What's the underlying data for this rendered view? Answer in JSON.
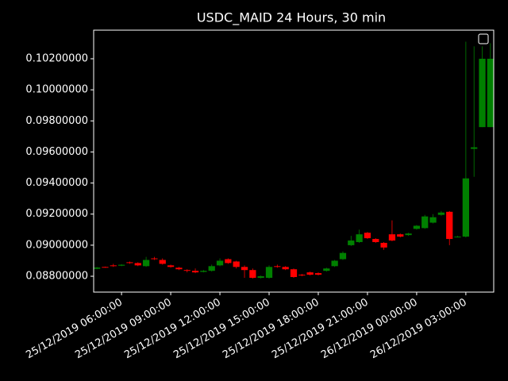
{
  "chart_data": {
    "type": "candlestick",
    "title": "USDC_MAID  24 Hours, 30 min",
    "x": [
      "25/12/2019  04:30:00",
      "25/12/2019  05:00:00",
      "25/12/2019  05:30:00",
      "25/12/2019  06:00:00",
      "25/12/2019  06:30:00",
      "25/12/2019  07:00:00",
      "25/12/2019  07:30:00",
      "25/12/2019  08:00:00",
      "25/12/2019  08:30:00",
      "25/12/2019  09:00:00",
      "25/12/2019  09:30:00",
      "25/12/2019  10:00:00",
      "25/12/2019  10:30:00",
      "25/12/2019  11:00:00",
      "25/12/2019  11:30:00",
      "25/12/2019  12:00:00",
      "25/12/2019  12:30:00",
      "25/12/2019  13:00:00",
      "25/12/2019  13:30:00",
      "25/12/2019  14:00:00",
      "25/12/2019  14:30:00",
      "25/12/2019  15:00:00",
      "25/12/2019  15:30:00",
      "25/12/2019  16:00:00",
      "25/12/2019  16:30:00",
      "25/12/2019  17:00:00",
      "25/12/2019  17:30:00",
      "25/12/2019  18:00:00",
      "25/12/2019  18:30:00",
      "25/12/2019  19:00:00",
      "25/12/2019  19:30:00",
      "25/12/2019  20:00:00",
      "25/12/2019  20:30:00",
      "25/12/2019  21:00:00",
      "25/12/2019  21:30:00",
      "25/12/2019  22:00:00",
      "25/12/2019  22:30:00",
      "25/12/2019  23:00:00",
      "25/12/2019  23:30:00",
      "26/12/2019  00:00:00",
      "26/12/2019  00:30:00",
      "26/12/2019  01:00:00",
      "26/12/2019  01:30:00",
      "26/12/2019  02:00:00",
      "26/12/2019  02:30:00",
      "26/12/2019  03:00:00",
      "26/12/2019  03:30:00",
      "26/12/2019  04:00:00",
      "26/12/2019  04:30:00"
    ],
    "open": [
      0.08848,
      0.0886,
      0.0887,
      0.08868,
      0.0889,
      0.08885,
      0.08865,
      0.08915,
      0.08905,
      0.0887,
      0.08855,
      0.0884,
      0.08835,
      0.08828,
      0.08835,
      0.0887,
      0.0891,
      0.08895,
      0.0886,
      0.0884,
      0.0879,
      0.0879,
      0.08865,
      0.0886,
      0.08845,
      0.0881,
      0.08825,
      0.0882,
      0.08835,
      0.08865,
      0.0891,
      0.09,
      0.0902,
      0.0908,
      0.0904,
      0.09015,
      0.0907,
      0.0907,
      0.09065,
      0.09105,
      0.0911,
      0.09145,
      0.09195,
      0.09215,
      0.0905,
      0.09055,
      0.0962,
      0.0976,
      0.0976
    ],
    "close": [
      0.08856,
      0.08857,
      0.08866,
      0.08874,
      0.08885,
      0.0887,
      0.08905,
      0.0891,
      0.0888,
      0.0886,
      0.08845,
      0.08835,
      0.08825,
      0.08835,
      0.08865,
      0.089,
      0.08885,
      0.0886,
      0.0884,
      0.0879,
      0.088,
      0.0886,
      0.0886,
      0.08845,
      0.08795,
      0.08805,
      0.0881,
      0.0881,
      0.0885,
      0.089,
      0.0895,
      0.0903,
      0.0907,
      0.09045,
      0.0902,
      0.08985,
      0.0903,
      0.09055,
      0.09075,
      0.09125,
      0.09185,
      0.0918,
      0.0921,
      0.0904,
      0.09055,
      0.0943,
      0.0963,
      0.102,
      0.102
    ],
    "high": [
      0.0886,
      0.08862,
      0.0888,
      0.08878,
      0.08895,
      0.0889,
      0.08925,
      0.08925,
      0.08915,
      0.08875,
      0.0886,
      0.08845,
      0.0885,
      0.0884,
      0.08875,
      0.08915,
      0.08915,
      0.089,
      0.0887,
      0.0885,
      0.08805,
      0.0887,
      0.08875,
      0.08865,
      0.0885,
      0.08815,
      0.0883,
      0.08825,
      0.08855,
      0.08905,
      0.0896,
      0.0906,
      0.091,
      0.09085,
      0.09045,
      0.0902,
      0.0916,
      0.09075,
      0.0908,
      0.0913,
      0.09195,
      0.092,
      0.0922,
      0.0922,
      0.0906,
      0.1031,
      0.1028,
      0.1028,
      0.103
    ],
    "low": [
      0.08845,
      0.08855,
      0.0886,
      0.08865,
      0.0888,
      0.08865,
      0.0886,
      0.08905,
      0.08875,
      0.08855,
      0.0884,
      0.08825,
      0.0882,
      0.08825,
      0.0883,
      0.08865,
      0.0888,
      0.0885,
      0.0879,
      0.08785,
      0.08785,
      0.08785,
      0.08855,
      0.0884,
      0.0879,
      0.088,
      0.08805,
      0.08805,
      0.0883,
      0.0886,
      0.08905,
      0.08995,
      0.09015,
      0.0904,
      0.09015,
      0.0897,
      0.09025,
      0.0905,
      0.0906,
      0.091,
      0.09105,
      0.0914,
      0.0919,
      0.09,
      0.0905,
      0.0905,
      0.0944,
      0.0976,
      0.0976
    ],
    "up_color": "#008000",
    "down_color": "#ff0000",
    "xlim": [
      "25/12/2019  04:18:00",
      "26/12/2019  04:42:00"
    ],
    "xticks": [
      "25/12/2019  06:00:00",
      "25/12/2019  09:00:00",
      "25/12/2019  12:00:00",
      "25/12/2019  15:00:00",
      "25/12/2019  18:00:00",
      "25/12/2019  21:00:00",
      "26/12/2019  00:00:00",
      "26/12/2019  03:00:00"
    ],
    "ylim": [
      0.08698,
      0.10384
    ],
    "yticks": [
      {
        "value": 0.088,
        "label": "0.08800000"
      },
      {
        "value": 0.09,
        "label": "0.09000000"
      },
      {
        "value": 0.092,
        "label": "0.09200000"
      },
      {
        "value": 0.094,
        "label": "0.09400000"
      },
      {
        "value": 0.096,
        "label": "0.09600000"
      },
      {
        "value": 0.098,
        "label": "0.09800000"
      },
      {
        "value": 0.1,
        "label": "0.10000000"
      },
      {
        "value": 0.102,
        "label": "0.10200000"
      }
    ]
  }
}
